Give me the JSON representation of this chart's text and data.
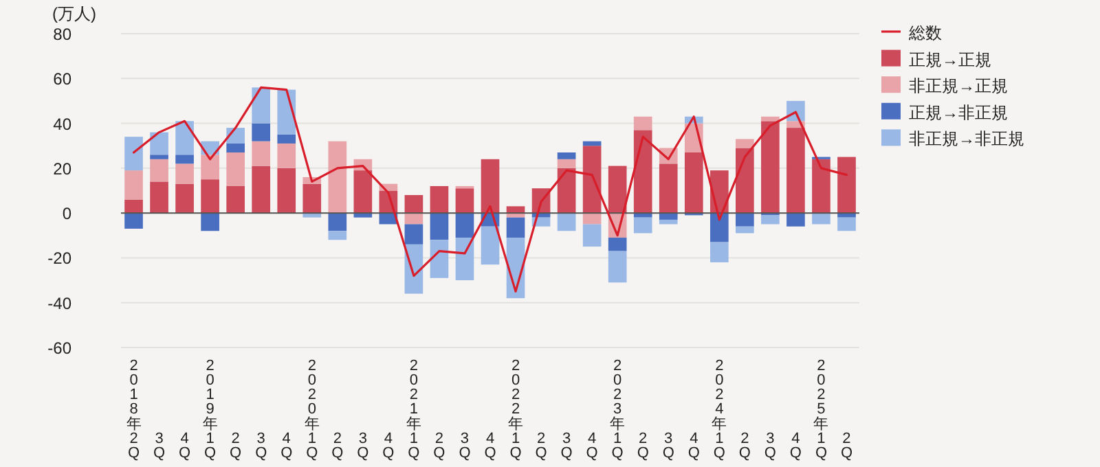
{
  "chart_data": {
    "type": "bar",
    "stacked": true,
    "ylabel": "(万人)",
    "categories": [
      "2018年2Q",
      "3Q",
      "4Q",
      "2019年1Q",
      "2Q",
      "3Q",
      "4Q",
      "2020年1Q",
      "2Q",
      "3Q",
      "4Q",
      "2021年1Q",
      "2Q",
      "3Q",
      "4Q",
      "2022年1Q",
      "2Q",
      "3Q",
      "4Q",
      "2023年1Q",
      "2Q",
      "3Q",
      "4Q",
      "2024年1Q",
      "2Q",
      "3Q",
      "4Q",
      "2025年1Q",
      "2Q"
    ],
    "series": [
      {
        "name": "総数",
        "type": "line",
        "color": "#d81e2a",
        "values": [
          27,
          36,
          41,
          24,
          38,
          56,
          55,
          14,
          20,
          21,
          9,
          -28,
          -17,
          -18,
          3,
          -35,
          5,
          19,
          17,
          -10,
          34,
          24,
          43,
          -3,
          25,
          39,
          45,
          20,
          17
        ]
      },
      {
        "name": "正規→正規",
        "color": "#cc4a5a",
        "values": [
          6,
          14,
          13,
          15,
          12,
          21,
          20,
          13,
          0,
          19,
          10,
          8,
          12,
          11,
          24,
          3,
          11,
          20,
          30,
          21,
          37,
          22,
          27,
          19,
          29,
          41,
          38,
          24,
          25
        ]
      },
      {
        "name": "非正規→正規",
        "color": "#e8a4a8",
        "values": [
          13,
          10,
          9,
          11,
          15,
          11,
          11,
          3,
          32,
          5,
          3,
          -5,
          0,
          1,
          null,
          -2,
          0,
          4,
          -5,
          -11,
          6,
          7,
          13,
          0,
          4,
          2,
          3,
          0,
          0
        ]
      },
      {
        "name": "正規→非正規",
        "color": "#4a6fc0",
        "values": [
          -7,
          2,
          4,
          -8,
          4,
          8,
          4,
          0,
          -8,
          -2,
          -5,
          -9,
          -12,
          -11,
          -6,
          -9,
          -2,
          3,
          2,
          -6,
          -2,
          -3,
          -1,
          -13,
          -6,
          -1,
          -6,
          1,
          -2
        ]
      },
      {
        "name": "非正規→非正規",
        "color": "#9ab8e6",
        "values": [
          15,
          10,
          15,
          6,
          7,
          16,
          20,
          -2,
          -4,
          null,
          0,
          -22,
          -17,
          -19,
          -17,
          -27,
          -4,
          -8,
          -10,
          -14,
          -7,
          -2,
          3,
          -9,
          -3,
          -4,
          9,
          -5,
          -6
        ]
      }
    ],
    "ylim": [
      -60,
      80
    ],
    "yticks": [
      -60,
      -40,
      -20,
      0,
      20,
      40,
      60,
      80
    ],
    "grid": "y",
    "legend": "right"
  }
}
